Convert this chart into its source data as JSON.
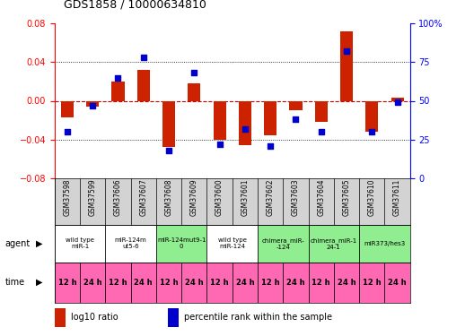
{
  "title": "GDS1858 / 10000634810",
  "samples": [
    "GSM37598",
    "GSM37599",
    "GSM37606",
    "GSM37607",
    "GSM37608",
    "GSM37609",
    "GSM37600",
    "GSM37601",
    "GSM37602",
    "GSM37603",
    "GSM37604",
    "GSM37605",
    "GSM37610",
    "GSM37611"
  ],
  "log10_ratio": [
    -0.017,
    -0.006,
    0.02,
    0.032,
    -0.048,
    0.018,
    -0.04,
    -0.046,
    -0.036,
    -0.01,
    -0.022,
    0.072,
    -0.032,
    0.003
  ],
  "percentile_rank": [
    30,
    47,
    65,
    78,
    18,
    68,
    22,
    32,
    21,
    38,
    30,
    82,
    30,
    49
  ],
  "agents": [
    {
      "label": "wild type\nmiR-1",
      "color": "#ffffff",
      "span": [
        0,
        2
      ]
    },
    {
      "label": "miR-124m\nut5-6",
      "color": "#ffffff",
      "span": [
        2,
        4
      ]
    },
    {
      "label": "miR-124mut9-1\n0",
      "color": "#90ee90",
      "span": [
        4,
        6
      ]
    },
    {
      "label": "wild type\nmiR-124",
      "color": "#ffffff",
      "span": [
        6,
        8
      ]
    },
    {
      "label": "chimera_miR-\n-124",
      "color": "#90ee90",
      "span": [
        8,
        10
      ]
    },
    {
      "label": "chimera_miR-1\n24-1",
      "color": "#90ee90",
      "span": [
        10,
        12
      ]
    },
    {
      "label": "miR373/hes3",
      "color": "#90ee90",
      "span": [
        12,
        14
      ]
    }
  ],
  "times": [
    "12 h",
    "24 h",
    "12 h",
    "24 h",
    "12 h",
    "24 h",
    "12 h",
    "24 h",
    "12 h",
    "24 h",
    "12 h",
    "24 h",
    "12 h",
    "24 h"
  ],
  "time_color": "#ff69b4",
  "ylim_left": [
    -0.08,
    0.08
  ],
  "ylim_right": [
    0,
    100
  ],
  "yticks_left": [
    -0.08,
    -0.04,
    0,
    0.04,
    0.08
  ],
  "yticks_right": [
    0,
    25,
    50,
    75,
    100
  ],
  "bar_color": "#cc2200",
  "dot_color": "#0000cc",
  "zeroline_color": "#cc0000",
  "grid_color": "#000000",
  "sample_bg": "#d3d3d3"
}
